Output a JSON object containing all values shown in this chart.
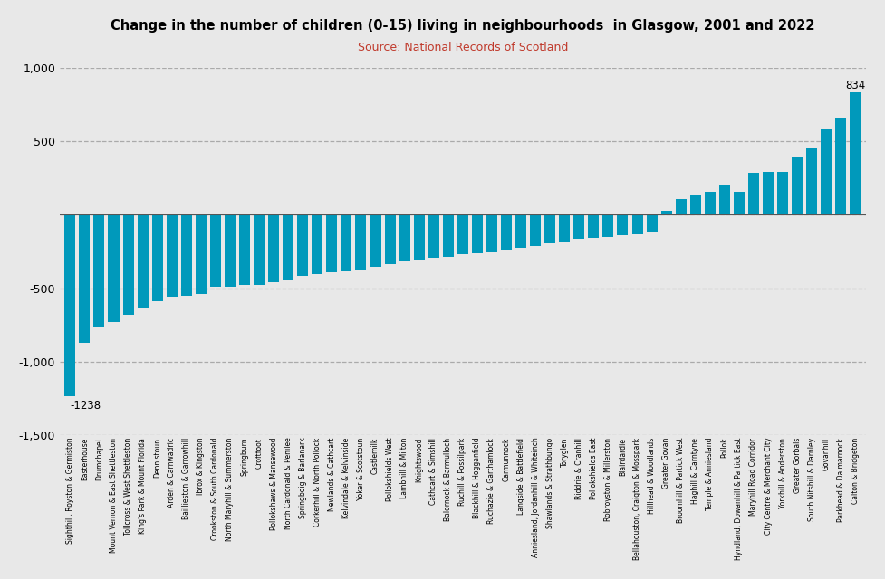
{
  "title": "Change in the number of children (0-15) living in neighbourhoods  in Glasgow, 2001 and 2022",
  "subtitle": "Source: National Records of Scotland",
  "subtitle_color": "#c0392b",
  "bar_color": "#0099bb",
  "background_color": "#e8e8e8",
  "plot_bg_color": "#e8e8e8",
  "ylim": [
    -1500,
    1000
  ],
  "yticks": [
    -1500,
    -1000,
    -500,
    0,
    500,
    1000
  ],
  "categories": [
    "Sighthill, Royston & Germiston",
    "Easterhouse",
    "Drumchapel",
    "Mount Vernon & East Shettleston",
    "Tollcross & West Shettleston",
    "King's Park & Mount Florida",
    "Dennistoun",
    "Arden & Carnwadric",
    "Baillieston & Garrowhill",
    "Ibrox & Kingston",
    "Crookston & South Cardonald",
    "North Maryhill & Summerston",
    "Springburn",
    "Croftfoot",
    "Pollokshaws & Mansewood",
    "North Cardonald & Penilee",
    "Springboig & Barlanark",
    "Corkerhill & North Pollock",
    "Newlands & Cathcart",
    "Kelvindale & Kelvinside",
    "Yoker & Scotstoun",
    "Castlemilk",
    "Pollokshields West",
    "Lambhill & Milton",
    "Knightswood",
    "Cathcart & Simshill",
    "Balornock & Barmulloch",
    "Ruchill & Possilpark",
    "Blackhill & Hogganfield",
    "Ruchazie & Garthamlock",
    "Carmunnock",
    "Langside & Battlefield",
    "Anniesland, Jordanhill & Whiteinch",
    "Shawlands & Strathbungo",
    "Toryglen",
    "Riddrie & Cranhill",
    "Pollokshields East",
    "Robroyston & Millerston",
    "Blairdardie",
    "Bellahouston, Craigton & Mosspark",
    "Hillhead & Woodlands",
    "Greater Govan",
    "Broomhill & Partick West",
    "Haghill & Carntyne",
    "Temple & Anniesland",
    "Pollok",
    "Hyndland, Dowanhill & Partick East",
    "Maryhill Road Corridor",
    "City Centre & Merchant City",
    "Yorkhill & Anderston",
    "Greater Gorbals",
    "South Nitshill & Darnley",
    "Govanhill",
    "Parkhead & Dalmarnock",
    "Calton & Bridgeton"
  ],
  "values": [
    -1238,
    -870,
    -760,
    -730,
    -680,
    -630,
    -590,
    -560,
    -550,
    -540,
    -490,
    -490,
    -480,
    -480,
    -460,
    -440,
    -415,
    -405,
    -390,
    -380,
    -370,
    -355,
    -335,
    -315,
    -305,
    -295,
    -285,
    -270,
    -260,
    -250,
    -235,
    -225,
    -215,
    -195,
    -180,
    -165,
    -155,
    -150,
    -140,
    -130,
    -115,
    30,
    110,
    130,
    155,
    200,
    155,
    285,
    295,
    295,
    390,
    450,
    580,
    665,
    834
  ],
  "annotated_bars": {
    "0": "-1238",
    "54": "834"
  }
}
